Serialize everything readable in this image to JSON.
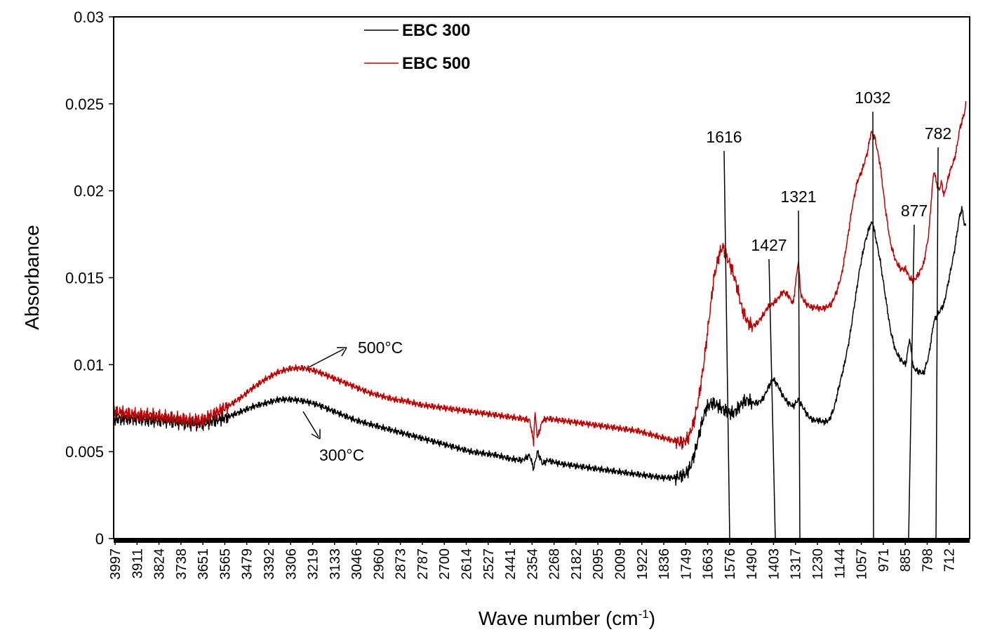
{
  "chart_data": {
    "type": "line",
    "title": "",
    "xlabel": "Wave number (cm",
    "xlabel_sup": "-1",
    "xlabel_close": ")",
    "ylabel": "Absorbance",
    "x_reversed": true,
    "xlim": [
      3997,
      650
    ],
    "ylim": [
      0,
      0.03
    ],
    "y_ticks": [
      0,
      0.005,
      0.01,
      0.015,
      0.02,
      0.025,
      0.03
    ],
    "y_tick_labels": [
      "0",
      "0.005",
      "0.01",
      "0.015",
      "0.02",
      "0.025",
      "0.03"
    ],
    "x_ticks": [
      3997,
      3911,
      3824,
      3738,
      3651,
      3565,
      3479,
      3392,
      3306,
      3219,
      3133,
      3046,
      2960,
      2873,
      2787,
      2700,
      2614,
      2527,
      2441,
      2354,
      2268,
      2182,
      2095,
      2009,
      1922,
      1836,
      1749,
      1663,
      1576,
      1490,
      1403,
      1317,
      1230,
      1144,
      1057,
      971,
      885,
      798,
      712
    ],
    "grid": false,
    "legend_position": "top",
    "series": [
      {
        "name": "EBC 300",
        "color": "#000000",
        "points": [
          [
            3997,
            0.0069
          ],
          [
            3950,
            0.0069
          ],
          [
            3900,
            0.0069
          ],
          [
            3850,
            0.0068
          ],
          [
            3800,
            0.0068
          ],
          [
            3750,
            0.0067
          ],
          [
            3700,
            0.0066
          ],
          [
            3650,
            0.0066
          ],
          [
            3600,
            0.0068
          ],
          [
            3550,
            0.007
          ],
          [
            3500,
            0.0073
          ],
          [
            3450,
            0.0076
          ],
          [
            3400,
            0.0078
          ],
          [
            3350,
            0.008
          ],
          [
            3300,
            0.008
          ],
          [
            3250,
            0.0079
          ],
          [
            3200,
            0.0077
          ],
          [
            3150,
            0.0074
          ],
          [
            3100,
            0.0071
          ],
          [
            3050,
            0.0068
          ],
          [
            3000,
            0.0066
          ],
          [
            2950,
            0.0064
          ],
          [
            2900,
            0.0062
          ],
          [
            2850,
            0.006
          ],
          [
            2800,
            0.0058
          ],
          [
            2750,
            0.0056
          ],
          [
            2700,
            0.0054
          ],
          [
            2650,
            0.0052
          ],
          [
            2600,
            0.005
          ],
          [
            2550,
            0.0049
          ],
          [
            2500,
            0.0048
          ],
          [
            2450,
            0.0046
          ],
          [
            2400,
            0.0045
          ],
          [
            2370,
            0.0048
          ],
          [
            2355,
            0.004
          ],
          [
            2340,
            0.005
          ],
          [
            2320,
            0.0043
          ],
          [
            2300,
            0.0045
          ],
          [
            2250,
            0.0043
          ],
          [
            2200,
            0.0042
          ],
          [
            2150,
            0.0041
          ],
          [
            2100,
            0.004
          ],
          [
            2050,
            0.0039
          ],
          [
            2000,
            0.0038
          ],
          [
            1950,
            0.0037
          ],
          [
            1900,
            0.0036
          ],
          [
            1850,
            0.0035
          ],
          [
            1800,
            0.0035
          ],
          [
            1760,
            0.0037
          ],
          [
            1740,
            0.0042
          ],
          [
            1720,
            0.0052
          ],
          [
            1700,
            0.0065
          ],
          [
            1680,
            0.0075
          ],
          [
            1660,
            0.0078
          ],
          [
            1640,
            0.0077
          ],
          [
            1620,
            0.0075
          ],
          [
            1600,
            0.0073
          ],
          [
            1580,
            0.0072
          ],
          [
            1560,
            0.0074
          ],
          [
            1540,
            0.0078
          ],
          [
            1520,
            0.008
          ],
          [
            1500,
            0.0078
          ],
          [
            1480,
            0.0078
          ],
          [
            1460,
            0.008
          ],
          [
            1440,
            0.0086
          ],
          [
            1420,
            0.0092
          ],
          [
            1400,
            0.0088
          ],
          [
            1380,
            0.0082
          ],
          [
            1360,
            0.0078
          ],
          [
            1340,
            0.0076
          ],
          [
            1320,
            0.008
          ],
          [
            1300,
            0.0075
          ],
          [
            1280,
            0.007
          ],
          [
            1260,
            0.0068
          ],
          [
            1240,
            0.0068
          ],
          [
            1220,
            0.0067
          ],
          [
            1200,
            0.0068
          ],
          [
            1180,
            0.0075
          ],
          [
            1160,
            0.0088
          ],
          [
            1140,
            0.01
          ],
          [
            1120,
            0.0115
          ],
          [
            1100,
            0.0135
          ],
          [
            1080,
            0.0155
          ],
          [
            1060,
            0.017
          ],
          [
            1040,
            0.018
          ],
          [
            1030,
            0.0182
          ],
          [
            1020,
            0.0175
          ],
          [
            1000,
            0.016
          ],
          [
            980,
            0.014
          ],
          [
            960,
            0.012
          ],
          [
            940,
            0.0108
          ],
          [
            920,
            0.0103
          ],
          [
            900,
            0.01
          ],
          [
            885,
            0.0115
          ],
          [
            870,
            0.0098
          ],
          [
            850,
            0.0096
          ],
          [
            830,
            0.0095
          ],
          [
            810,
            0.0105
          ],
          [
            800,
            0.0115
          ],
          [
            790,
            0.0125
          ],
          [
            770,
            0.013
          ],
          [
            750,
            0.0135
          ],
          [
            730,
            0.015
          ],
          [
            710,
            0.0165
          ],
          [
            700,
            0.0175
          ],
          [
            690,
            0.0185
          ],
          [
            680,
            0.019
          ],
          [
            670,
            0.018
          ]
        ]
      },
      {
        "name": "EBC 500",
        "color": "#c00000",
        "points": [
          [
            3997,
            0.0073
          ],
          [
            3950,
            0.0072
          ],
          [
            3900,
            0.0071
          ],
          [
            3850,
            0.0071
          ],
          [
            3800,
            0.007
          ],
          [
            3750,
            0.0069
          ],
          [
            3700,
            0.0068
          ],
          [
            3650,
            0.0068
          ],
          [
            3600,
            0.0072
          ],
          [
            3550,
            0.0076
          ],
          [
            3500,
            0.0081
          ],
          [
            3450,
            0.0087
          ],
          [
            3400,
            0.0092
          ],
          [
            3350,
            0.0096
          ],
          [
            3300,
            0.0098
          ],
          [
            3250,
            0.0098
          ],
          [
            3200,
            0.0096
          ],
          [
            3150,
            0.0093
          ],
          [
            3100,
            0.009
          ],
          [
            3050,
            0.0087
          ],
          [
            3000,
            0.0084
          ],
          [
            2950,
            0.0082
          ],
          [
            2900,
            0.008
          ],
          [
            2850,
            0.0079
          ],
          [
            2800,
            0.0077
          ],
          [
            2750,
            0.0076
          ],
          [
            2700,
            0.0075
          ],
          [
            2650,
            0.0074
          ],
          [
            2600,
            0.0073
          ],
          [
            2550,
            0.0072
          ],
          [
            2500,
            0.0071
          ],
          [
            2450,
            0.007
          ],
          [
            2400,
            0.0069
          ],
          [
            2370,
            0.0068
          ],
          [
            2355,
            0.0055
          ],
          [
            2350,
            0.0073
          ],
          [
            2340,
            0.0058
          ],
          [
            2320,
            0.0068
          ],
          [
            2300,
            0.0069
          ],
          [
            2250,
            0.0068
          ],
          [
            2200,
            0.0067
          ],
          [
            2150,
            0.0066
          ],
          [
            2100,
            0.0065
          ],
          [
            2050,
            0.0064
          ],
          [
            2000,
            0.0063
          ],
          [
            1950,
            0.0062
          ],
          [
            1900,
            0.006
          ],
          [
            1850,
            0.0058
          ],
          [
            1800,
            0.0056
          ],
          [
            1770,
            0.0055
          ],
          [
            1750,
            0.0058
          ],
          [
            1730,
            0.0066
          ],
          [
            1710,
            0.008
          ],
          [
            1690,
            0.01
          ],
          [
            1670,
            0.0125
          ],
          [
            1650,
            0.015
          ],
          [
            1630,
            0.0163
          ],
          [
            1616,
            0.0168
          ],
          [
            1600,
            0.0162
          ],
          [
            1580,
            0.0155
          ],
          [
            1560,
            0.0145
          ],
          [
            1540,
            0.0132
          ],
          [
            1520,
            0.0125
          ],
          [
            1500,
            0.0122
          ],
          [
            1480,
            0.0124
          ],
          [
            1460,
            0.0128
          ],
          [
            1440,
            0.0133
          ],
          [
            1420,
            0.0135
          ],
          [
            1400,
            0.0138
          ],
          [
            1380,
            0.0142
          ],
          [
            1360,
            0.014
          ],
          [
            1340,
            0.0135
          ],
          [
            1320,
            0.016
          ],
          [
            1310,
            0.014
          ],
          [
            1290,
            0.0135
          ],
          [
            1270,
            0.0133
          ],
          [
            1250,
            0.0133
          ],
          [
            1230,
            0.0132
          ],
          [
            1210,
            0.0133
          ],
          [
            1190,
            0.0135
          ],
          [
            1170,
            0.0142
          ],
          [
            1150,
            0.0152
          ],
          [
            1130,
            0.017
          ],
          [
            1110,
            0.019
          ],
          [
            1090,
            0.0205
          ],
          [
            1070,
            0.0212
          ],
          [
            1050,
            0.0222
          ],
          [
            1035,
            0.0234
          ],
          [
            1020,
            0.023
          ],
          [
            1000,
            0.0215
          ],
          [
            980,
            0.019
          ],
          [
            960,
            0.017
          ],
          [
            940,
            0.016
          ],
          [
            920,
            0.0155
          ],
          [
            900,
            0.0155
          ],
          [
            885,
            0.015
          ],
          [
            870,
            0.0148
          ],
          [
            850,
            0.0152
          ],
          [
            830,
            0.0158
          ],
          [
            810,
            0.0175
          ],
          [
            800,
            0.0195
          ],
          [
            790,
            0.0212
          ],
          [
            780,
            0.0205
          ],
          [
            770,
            0.02
          ],
          [
            760,
            0.0205
          ],
          [
            750,
            0.0197
          ],
          [
            730,
            0.021
          ],
          [
            710,
            0.0218
          ],
          [
            700,
            0.0225
          ],
          [
            690,
            0.0235
          ],
          [
            680,
            0.024
          ],
          [
            670,
            0.0245
          ],
          [
            660,
            0.0255
          ]
        ]
      }
    ],
    "peak_labels": [
      {
        "label": "1616",
        "x": 1616
      },
      {
        "label": "1427",
        "x": 1427
      },
      {
        "label": "1321",
        "x": 1321
      },
      {
        "label": "1032",
        "x": 1032
      },
      {
        "label": "877",
        "x": 877
      },
      {
        "label": "782",
        "x": 782
      }
    ],
    "annotations": [
      {
        "text": "500°C",
        "series": "EBC 500",
        "x": 3300
      },
      {
        "text": "300°C",
        "series": "EBC 300",
        "x": 3300
      }
    ]
  }
}
